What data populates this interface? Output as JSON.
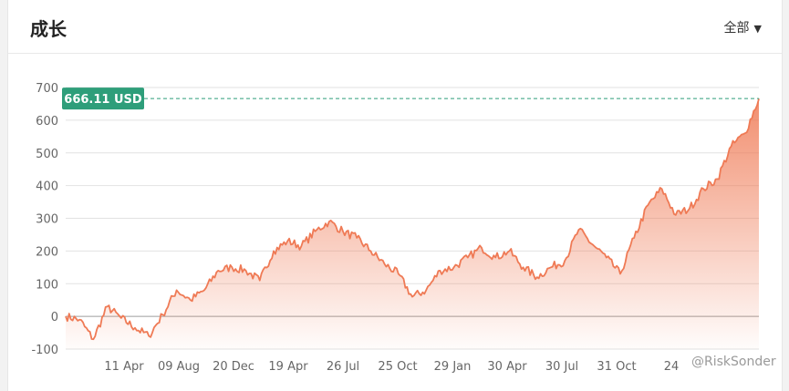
{
  "header": {
    "title": "成长",
    "filter_label": "全部"
  },
  "watermark": "@RiskSonder",
  "chart_data": {
    "type": "area",
    "title": "",
    "xlabel": "",
    "ylabel": "",
    "ylim": [
      -100,
      700
    ],
    "yticks": [
      -100,
      0,
      100,
      200,
      300,
      400,
      500,
      600,
      700
    ],
    "xtick_labels": [
      "11 Apr",
      "09 Aug",
      "20 Dec",
      "19 Apr",
      "26 Jul",
      "25 Oct",
      "29 Jan",
      "30 Apr",
      "30 Jul",
      "31 Oct",
      "24"
    ],
    "current_value_label": "666.11 USD",
    "current_value": 666.11,
    "grid": true,
    "line_color": "#ef7a55",
    "fill_color": "#ef7a55",
    "marker_color": "#2e9e7a",
    "series": [
      {
        "x": [
          0,
          2,
          4,
          6,
          8,
          10,
          12,
          14,
          16,
          18,
          20,
          22,
          24,
          26,
          28,
          30,
          32,
          34,
          36,
          38,
          40,
          42,
          44,
          46,
          48,
          50,
          52,
          54,
          56,
          58,
          60,
          62,
          64,
          66,
          68,
          70,
          72,
          74,
          76,
          78,
          80,
          82,
          84,
          86,
          88,
          90,
          92,
          94,
          96,
          98,
          100
        ],
        "y": [
          0,
          -10,
          -70,
          30,
          -5,
          -35,
          -60,
          5,
          80,
          50,
          80,
          140,
          150,
          140,
          110,
          200,
          230,
          215,
          260,
          290,
          260,
          240,
          200,
          160,
          130,
          60,
          80,
          140,
          150,
          180,
          210,
          180,
          200,
          150,
          120,
          150,
          170,
          265,
          220,
          180,
          130,
          240,
          340,
          390,
          310,
          330,
          390,
          420,
          520,
          560,
          666
        ]
      }
    ]
  }
}
